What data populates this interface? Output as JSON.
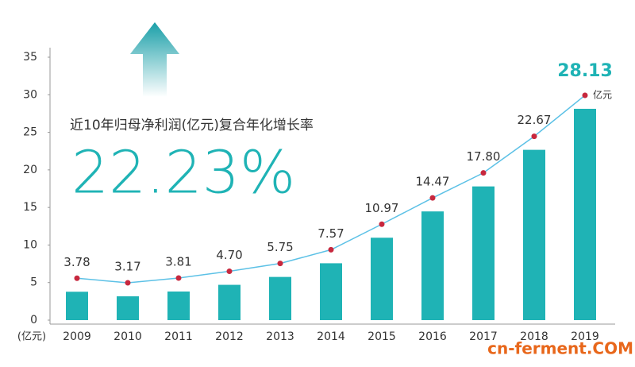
{
  "chart_data": {
    "type": "bar",
    "annotation": "近10年归母净利润(亿元)复合年化增长率",
    "highlight": "22.23%",
    "y_unit": "(亿元)",
    "value_unit": "亿元",
    "watermark": "cn-ferment.COM",
    "categories": [
      "2009",
      "2010",
      "2011",
      "2012",
      "2013",
      "2014",
      "2015",
      "2016",
      "2017",
      "2018",
      "2019"
    ],
    "values": [
      3.78,
      3.17,
      3.81,
      4.7,
      5.75,
      7.57,
      10.97,
      14.47,
      17.8,
      22.67,
      28.13
    ],
    "value_labels": [
      "3.78",
      "3.17",
      "3.81",
      "4.70",
      "5.75",
      "7.57",
      "10.97",
      "14.47",
      "17.80",
      "22.67",
      "28.13"
    ],
    "color": "#1fb3b5",
    "line_color": "#5cc1e6",
    "marker_color": "#c7283e",
    "ylim": [
      0,
      35
    ],
    "yticks": [
      0,
      5,
      10,
      15,
      20,
      25,
      30,
      35
    ],
    "grid": false
  }
}
